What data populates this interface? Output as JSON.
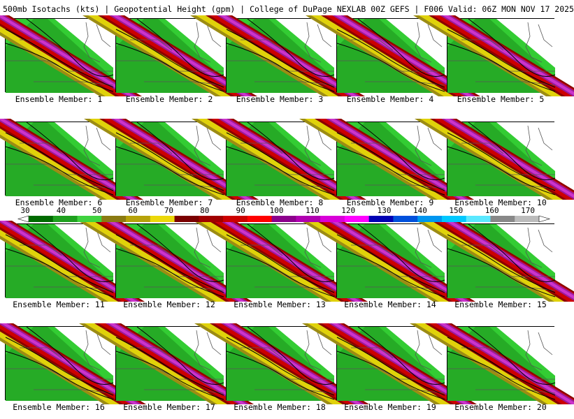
{
  "header": {
    "title": "500mb Isotachs (kts) | Geopotential Height (gpm) | College of DuPage NEXLAB   00Z GEFS | F006 Valid: 06Z MON NOV 17 2025"
  },
  "members": [
    {
      "id": 1,
      "label": "Ensemble Member: 1"
    },
    {
      "id": 2,
      "label": "Ensemble Member: 2"
    },
    {
      "id": 3,
      "label": "Ensemble Member: 3"
    },
    {
      "id": 4,
      "label": "Ensemble Member: 4"
    },
    {
      "id": 5,
      "label": "Ensemble Member: 5"
    },
    {
      "id": 6,
      "label": "Ensemble Member: 6"
    },
    {
      "id": 7,
      "label": "Ensemble Member: 7"
    },
    {
      "id": 8,
      "label": "Ensemble Member: 8"
    },
    {
      "id": 9,
      "label": "Ensemble Member: 9"
    },
    {
      "id": 10,
      "label": "Ensemble Member: 10"
    },
    {
      "id": 11,
      "label": "Ensemble Member: 11"
    },
    {
      "id": 12,
      "label": "Ensemble Member: 12"
    },
    {
      "id": 13,
      "label": "Ensemble Member: 13"
    },
    {
      "id": 14,
      "label": "Ensemble Member: 14"
    },
    {
      "id": 15,
      "label": "Ensemble Member: 15"
    },
    {
      "id": 16,
      "label": "Ensemble Member: 16"
    },
    {
      "id": 17,
      "label": "Ensemble Member: 17"
    },
    {
      "id": 18,
      "label": "Ensemble Member: 18"
    },
    {
      "id": 19,
      "label": "Ensemble Member: 19"
    },
    {
      "id": 20,
      "label": "Ensemble Member: 20"
    }
  ],
  "colorbar": {
    "tick_labels": [
      "30",
      "40",
      "50",
      "60",
      "70",
      "80",
      "90",
      "100",
      "110",
      "120",
      "130",
      "140",
      "150",
      "160",
      "170"
    ],
    "colors": [
      "#006a00",
      "#1fa01f",
      "#3fd23f",
      "#8a7a12",
      "#b6a20a",
      "#ecd80a",
      "#7a0000",
      "#a00000",
      "#cc0000",
      "#ff0000",
      "#8c008c",
      "#b000b0",
      "#d800d8",
      "#ff00ff",
      "#0000b4",
      "#0050dc",
      "#0096f0",
      "#00c8ff",
      "#5ae8ff",
      "#888888",
      "#bcbcbc"
    ]
  },
  "map_colors": {
    "bg": "#ffffff",
    "green_dark": "#1b8f1b",
    "green_light": "#33cc33",
    "olive": "#9c8c14",
    "yellow": "#e0d20a",
    "red_dark": "#8a0000",
    "red": "#cc0000",
    "purple": "#9a1a9a",
    "magenta": "#cc33cc",
    "border": "#000000",
    "state_lines": "#555555"
  }
}
